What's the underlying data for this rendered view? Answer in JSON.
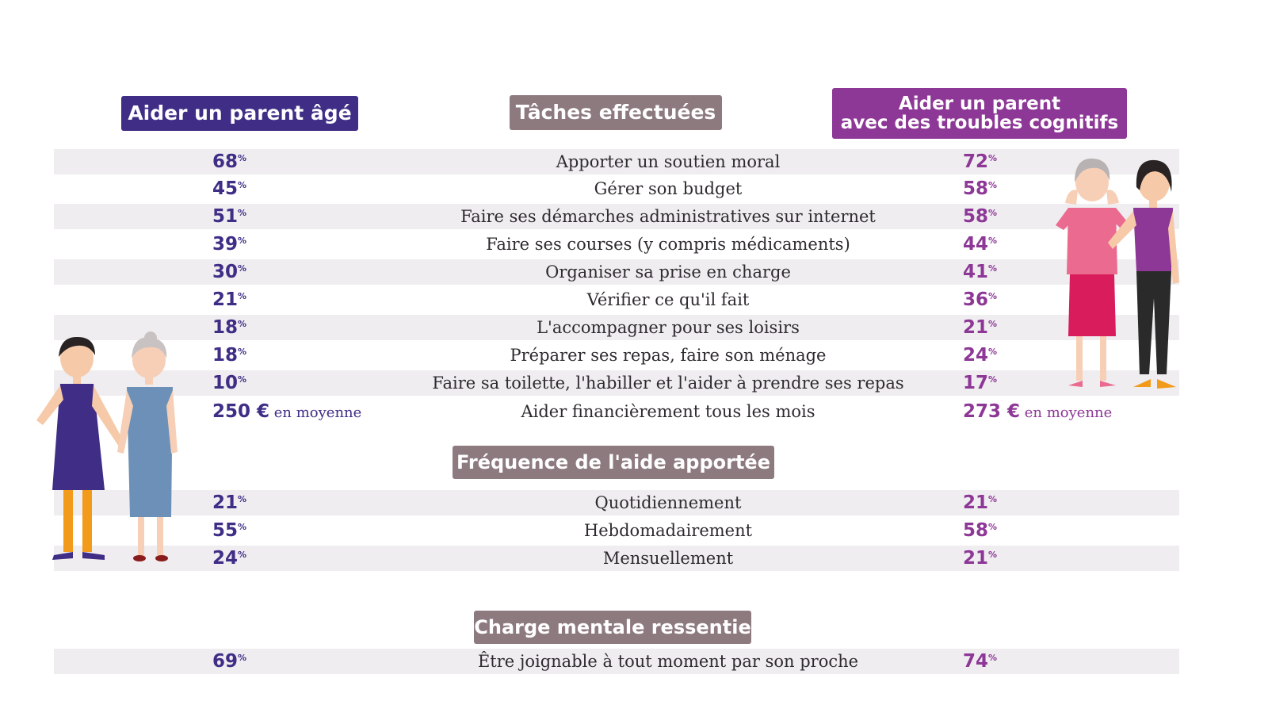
{
  "headers": {
    "left": "Aider un parent âgé",
    "middle": "Tâches effectuées",
    "right_line1": "Aider un parent",
    "right_line2": "avec des troubles cognitifs",
    "frequency": "Fréquence de l'aide apportée",
    "mental": "Charge mentale ressentie"
  },
  "percent_sign": "%",
  "chart_data": {
    "type": "table",
    "columns": [
      "Aider un parent âgé",
      "Aider un parent avec des troubles cognitifs"
    ],
    "sections": [
      {
        "title": "Tâches effectuées",
        "rows": [
          {
            "label": "Apporter un soutien moral",
            "left": "68",
            "right": "72"
          },
          {
            "label": "Gérer son budget",
            "left": "45",
            "right": "58"
          },
          {
            "label": "Faire ses démarches administratives sur internet",
            "left": "51",
            "right": "58"
          },
          {
            "label": "Faire ses courses (y compris médicaments)",
            "left": "39",
            "right": "44"
          },
          {
            "label": "Organiser sa prise en charge",
            "left": "30",
            "right": "41"
          },
          {
            "label": "Vérifier ce qu'il fait",
            "left": "21",
            "right": "36"
          },
          {
            "label": "L'accompagner pour ses loisirs",
            "left": "18",
            "right": "21"
          },
          {
            "label": "Préparer ses repas, faire son ménage",
            "left": "18",
            "right": "24"
          },
          {
            "label": "Faire sa toilette, l'habiller et l'aider à prendre ses repas",
            "left": "10",
            "right": "17"
          }
        ],
        "money_row": {
          "label": "Aider financièrement tous les mois",
          "left": "250 €",
          "right": "273 €",
          "suffix": "en moyenne"
        }
      },
      {
        "title": "Fréquence de l'aide apportée",
        "rows": [
          {
            "label": "Quotidiennement",
            "left": "21",
            "right": "21"
          },
          {
            "label": "Hebdomadairement",
            "left": "55",
            "right": "58"
          },
          {
            "label": "Mensuellement",
            "left": "24",
            "right": "21"
          }
        ]
      },
      {
        "title": "Charge mentale ressentie",
        "rows": [
          {
            "label": "Être joignable à tout moment par son proche",
            "left": "69",
            "right": "74"
          }
        ]
      }
    ]
  },
  "colors": {
    "left_accent": "#3f2d86",
    "right_accent": "#8d3796",
    "section_header": "#8d7a7e",
    "row_shade": "#efedf0"
  }
}
